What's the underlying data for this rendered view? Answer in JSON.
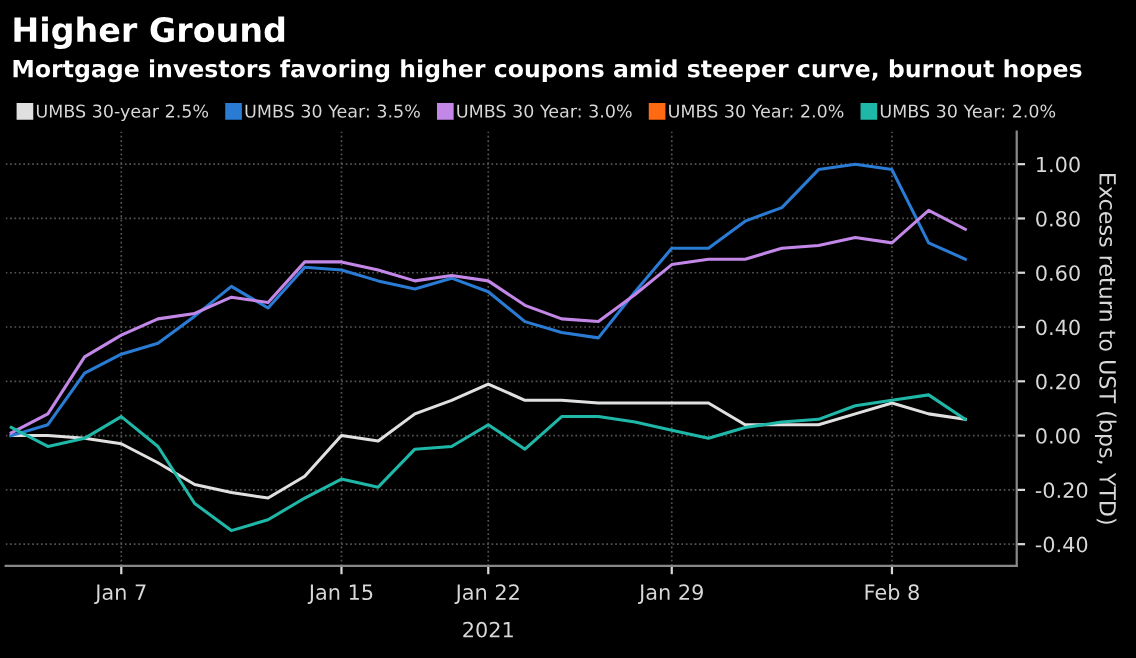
{
  "chart_data": {
    "type": "line",
    "title": "Higher Ground",
    "subtitle": "Mortgage investors favoring higher coupons amid steeper curve, burnout hopes",
    "ylabel": "Excess return to UST (bps, YTD)",
    "annotations": [
      "2021"
    ],
    "categories": [
      null,
      null,
      null,
      "Jan 7",
      null,
      null,
      null,
      null,
      null,
      "Jan 15",
      null,
      null,
      null,
      "Jan 22",
      null,
      null,
      null,
      null,
      "Jan 29",
      null,
      null,
      null,
      null,
      null,
      "Feb 8",
      null,
      null
    ],
    "series": [
      {
        "name": "UMBS 30-year 2.5%",
        "color": "#e0e0e0",
        "values": [
          0.0,
          0.0,
          -0.01,
          -0.03,
          -0.1,
          -0.18,
          -0.21,
          -0.23,
          -0.15,
          0.0,
          -0.02,
          0.08,
          0.13,
          0.19,
          0.13,
          0.13,
          0.12,
          0.12,
          0.12,
          0.12,
          0.04,
          0.04,
          0.04,
          0.08,
          0.12,
          0.08,
          0.06
        ]
      },
      {
        "name": "UMBS 30 Year: 3.5%",
        "color": "#2a7bd4",
        "values": [
          0.0,
          0.04,
          0.23,
          0.3,
          0.34,
          0.44,
          0.55,
          0.47,
          0.62,
          0.61,
          0.57,
          0.54,
          0.58,
          0.53,
          0.42,
          0.38,
          0.36,
          0.53,
          0.69,
          0.69,
          0.79,
          0.84,
          0.98,
          1.0,
          0.98,
          0.71,
          0.65
        ]
      },
      {
        "name": "UMBS 30 Year: 3.0%",
        "color": "#c387e8",
        "values": [
          0.01,
          0.08,
          0.29,
          0.37,
          0.43,
          0.45,
          0.51,
          0.49,
          0.64,
          0.64,
          0.61,
          0.57,
          0.59,
          0.57,
          0.48,
          0.43,
          0.42,
          0.52,
          0.63,
          0.65,
          0.65,
          0.69,
          0.7,
          0.73,
          0.71,
          0.83,
          0.76
        ]
      },
      {
        "name": "UMBS 30 Year: 2.0%",
        "color": "#ff6a13",
        "values": [
          null,
          null,
          null,
          null,
          null,
          null,
          null,
          null,
          null,
          null,
          null,
          null,
          null,
          null,
          null,
          null,
          null,
          null,
          null,
          null,
          null,
          null,
          null,
          null,
          null,
          null,
          null
        ]
      },
      {
        "name": "UMBS 30 Year: 2.0%",
        "color": "#1fb8a8",
        "values": [
          0.03,
          -0.04,
          -0.01,
          0.07,
          -0.04,
          -0.25,
          -0.35,
          -0.31,
          -0.23,
          -0.16,
          -0.19,
          -0.05,
          -0.04,
          0.04,
          -0.05,
          0.07,
          0.07,
          0.05,
          0.02,
          -0.01,
          0.03,
          0.05,
          0.06,
          0.11,
          0.13,
          0.15,
          0.06
        ]
      }
    ],
    "ylim": [
      -0.48,
      1.12
    ],
    "yticks": [
      {
        "value": -0.4,
        "label": "-0.40"
      },
      {
        "value": -0.2,
        "label": "-0.20"
      },
      {
        "value": 0,
        "label": "0.00"
      },
      {
        "value": 0.2,
        "label": "0.20"
      },
      {
        "value": 0.4,
        "label": "0.40"
      },
      {
        "value": 0.6,
        "label": "0.60"
      },
      {
        "value": 0.8,
        "label": "0.80"
      },
      {
        "value": 1.0,
        "label": "1.00"
      }
    ],
    "grid": true,
    "legend": "top",
    "marker": "none",
    "line_style": "solid"
  }
}
